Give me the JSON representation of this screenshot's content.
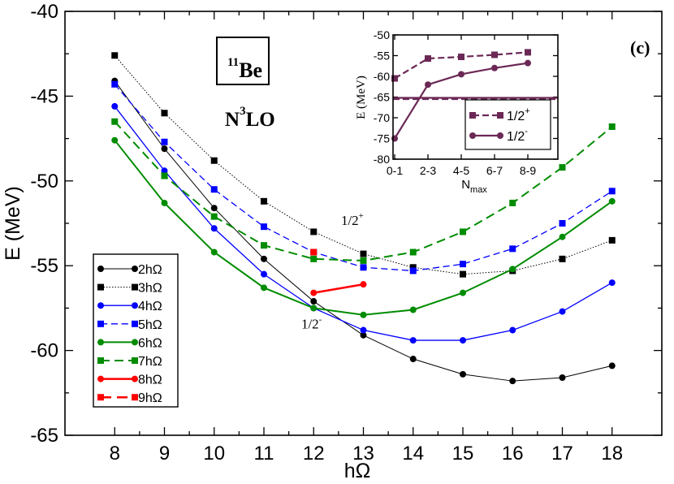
{
  "chart_data": [
    {
      "type": "line",
      "panel_label": "(c)",
      "nucleus_mass": "11",
      "nucleus_symbol": "Be",
      "interaction_base": "N",
      "interaction_exp": "3",
      "interaction_suffix": "LO",
      "xlabel": "hΩ",
      "ylabel": "E (MeV)",
      "xlim": [
        7.0,
        19.0
      ],
      "ylim": [
        -65,
        -40
      ],
      "xticks": [
        8,
        9,
        10,
        11,
        12,
        13,
        14,
        15,
        16,
        17,
        18
      ],
      "yticks": [
        -65,
        -60,
        -55,
        -50,
        -45,
        -40
      ],
      "annotations": [
        {
          "id": "ann-half-plus",
          "base": "1/2",
          "sup": "+",
          "x": 12.55,
          "y": -52.6,
          "color": "#702050"
        },
        {
          "id": "ann-half-minus",
          "base": "1/2",
          "sup": "-",
          "x": 11.75,
          "y": -58.7,
          "color": "#702050"
        }
      ],
      "legend_position": "bottom-left",
      "series": [
        {
          "name": "2hΩ",
          "color": "#000000",
          "dash": "solid",
          "width": 1.0,
          "marker": "circle",
          "x": [
            8,
            9,
            10,
            11,
            12,
            13,
            14,
            15,
            16,
            17,
            18
          ],
          "y": [
            -44.1,
            -48.1,
            -51.6,
            -54.6,
            -57.1,
            -59.1,
            -60.5,
            -61.4,
            -61.8,
            -61.6,
            -60.9
          ]
        },
        {
          "name": "3hΩ",
          "color": "#000000",
          "dash": "dotted",
          "width": 1.0,
          "marker": "square",
          "x": [
            8,
            9,
            10,
            11,
            12,
            13,
            14,
            15,
            16,
            17,
            18
          ],
          "y": [
            -42.6,
            -46.0,
            -48.8,
            -51.2,
            -53.0,
            -54.3,
            -55.1,
            -55.5,
            -55.3,
            -54.6,
            -53.5
          ]
        },
        {
          "name": "4hΩ",
          "color": "#0000ff",
          "dash": "solid",
          "width": 1.3,
          "marker": "circle",
          "x": [
            8,
            9,
            10,
            11,
            12,
            13,
            14,
            15,
            16,
            17,
            18
          ],
          "y": [
            -45.6,
            -49.4,
            -52.8,
            -55.5,
            -57.5,
            -58.8,
            -59.4,
            -59.4,
            -58.8,
            -57.7,
            -56.0
          ]
        },
        {
          "name": "5hΩ",
          "color": "#0000ff",
          "dash": "dashed",
          "width": 1.3,
          "marker": "square",
          "x": [
            8,
            9,
            10,
            11,
            12,
            13,
            14,
            15,
            16,
            17,
            18
          ],
          "y": [
            -44.3,
            -47.7,
            -50.5,
            -52.7,
            -54.2,
            -55.1,
            -55.3,
            -54.9,
            -54.0,
            -52.5,
            -50.6
          ]
        },
        {
          "name": "6hΩ",
          "color": "#008c00",
          "dash": "solid",
          "width": 2.0,
          "marker": "circle",
          "x": [
            8,
            9,
            10,
            11,
            12,
            13,
            14,
            15,
            16,
            17,
            18
          ],
          "y": [
            -47.6,
            -51.3,
            -54.2,
            -56.3,
            -57.5,
            -57.9,
            -57.6,
            -56.6,
            -55.2,
            -53.3,
            -51.2
          ]
        },
        {
          "name": "7hΩ",
          "color": "#008c00",
          "dash": "dashed",
          "width": 2.0,
          "marker": "square",
          "x": [
            8,
            9,
            10,
            11,
            12,
            13,
            14,
            15,
            16,
            17,
            18
          ],
          "y": [
            -46.5,
            -49.7,
            -52.1,
            -53.8,
            -54.6,
            -54.7,
            -54.2,
            -53.0,
            -51.3,
            -49.2,
            -46.8
          ]
        },
        {
          "name": "8hΩ",
          "color": "#ff0000",
          "dash": "solid",
          "width": 2.5,
          "marker": "circle",
          "x": [
            12,
            13
          ],
          "y": [
            -56.6,
            -56.1
          ]
        },
        {
          "name": "9hΩ",
          "color": "#ff0000",
          "dash": "dashed",
          "width": 2.5,
          "marker": "square",
          "x": [
            12
          ],
          "y": [
            -54.2
          ]
        }
      ]
    },
    {
      "type": "line",
      "title": "inset",
      "xlabel_base": "N",
      "xlabel_sub": "max",
      "ylabel": "E (MeV)",
      "categories": [
        "0-1",
        "2-3",
        "4-5",
        "6-7",
        "8-9"
      ],
      "ylim": [
        -80,
        -50
      ],
      "yticks": [
        -80,
        -75,
        -70,
        -65,
        -60,
        -55,
        -50
      ],
      "reference_lines": [
        {
          "y": -65.2,
          "style": "solid",
          "color": "#6b2855"
        },
        {
          "y": -65.5,
          "style": "dashed",
          "color": "#6b2855"
        }
      ],
      "series": [
        {
          "name": "1/2",
          "sup": "+",
          "color": "#6b2855",
          "dash": "dashed",
          "marker": "square",
          "values": [
            -60.5,
            -55.7,
            -55.3,
            -54.8,
            -54.2
          ]
        },
        {
          "name": "1/2",
          "sup": "-",
          "color": "#6b2855",
          "dash": "solid",
          "marker": "circle",
          "values": [
            -75.0,
            -62.0,
            -59.5,
            -58.0,
            -56.8
          ]
        }
      ]
    }
  ]
}
